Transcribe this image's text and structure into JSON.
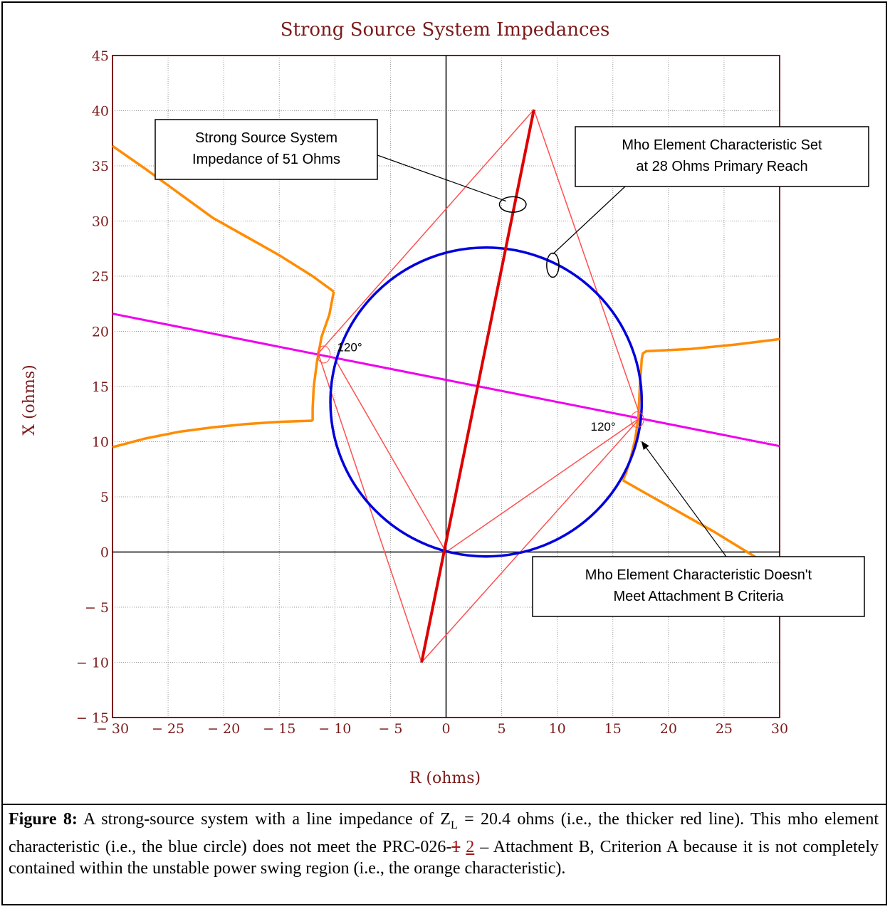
{
  "chart_data": {
    "type": "scatter",
    "title": "Strong Source System Impedances",
    "xlabel": "R (ohms)",
    "ylabel": "X (ohms)",
    "xlim": [
      -30,
      30
    ],
    "ylim": [
      -15,
      45
    ],
    "xticks": [
      -30,
      -25,
      -20,
      -15,
      -10,
      -5,
      0,
      5,
      10,
      15,
      20,
      25,
      30
    ],
    "yticks": [
      -15,
      -10,
      -5,
      0,
      5,
      10,
      15,
      20,
      25,
      30,
      35,
      40,
      45
    ],
    "xtick_labels": [
      "− 30",
      "− 25",
      "− 20",
      "− 15",
      "− 10",
      "− 5",
      "0",
      "5",
      "10",
      "15",
      "20",
      "25",
      "30"
    ],
    "ytick_labels": [
      "− 15",
      "− 10",
      "− 5",
      "0",
      "5",
      "10",
      "15",
      "20",
      "25",
      "30",
      "35",
      "40",
      "45"
    ],
    "grid": true,
    "colors": {
      "title": "#7b1a1a",
      "axis_box": "#7b1a1a",
      "grid": "#9a9a9a",
      "mho_circle": "#0000dd",
      "line_impedance": "#dd0000",
      "system_impedance": "#ff5050",
      "unstable_region": "#ff8c00",
      "magenta_line": "#ee00ee"
    },
    "series": [
      {
        "name": "mho circle",
        "kind": "circle",
        "center": [
          3.6,
          13.6
        ],
        "radius": 14.0
      },
      {
        "name": "line impedance",
        "kind": "line",
        "x": [
          -2.2,
          7.9
        ],
        "y": [
          -10.0,
          40.1
        ]
      },
      {
        "name": "system impedance",
        "kind": "polygon",
        "x": [
          7.9,
          17.5,
          -2.2,
          -11.5,
          7.9
        ],
        "y": [
          40.1,
          12.2,
          -10.0,
          18.0,
          40.1
        ]
      },
      {
        "name": "secondary segment",
        "kind": "line",
        "x": [
          -10.0,
          0.0,
          17.5
        ],
        "y": [
          17.5,
          0.0,
          12.2
        ]
      },
      {
        "name": "magenta line",
        "kind": "line",
        "x": [
          -30,
          30
        ],
        "y": [
          21.6,
          9.6
        ]
      },
      {
        "name": "unstable upper left",
        "kind": "line",
        "x": [
          -30,
          -27,
          -24,
          -21,
          -18,
          -15,
          -12,
          -10.1
        ],
        "y": [
          36.8,
          34.7,
          32.5,
          30.3,
          28.6,
          26.9,
          25.0,
          23.6
        ]
      },
      {
        "name": "unstable left arc",
        "kind": "line",
        "x": [
          -10.1,
          -10.5,
          -11.2,
          -11.6,
          -11.9,
          -12.0,
          -12.0
        ],
        "y": [
          23.6,
          21.5,
          19.5,
          17.3,
          15.0,
          13.0,
          11.9
        ]
      },
      {
        "name": "unstable lower left",
        "kind": "line",
        "x": [
          -12.0,
          -15,
          -18,
          -21,
          -24,
          -27,
          -30
        ],
        "y": [
          11.9,
          11.8,
          11.6,
          11.3,
          10.9,
          10.3,
          9.5
        ]
      },
      {
        "name": "unstable upper right",
        "kind": "line",
        "x": [
          17.4,
          17.6,
          17.7,
          18.0,
          22,
          26,
          30
        ],
        "y": [
          14.5,
          17.5,
          18.0,
          18.2,
          18.4,
          18.8,
          19.3
        ]
      },
      {
        "name": "unstable right arc",
        "kind": "line",
        "x": [
          17.4,
          17.3,
          17.0,
          16.6,
          16.2,
          15.9
        ],
        "y": [
          14.5,
          12.2,
          10.2,
          8.5,
          7.2,
          6.5
        ]
      },
      {
        "name": "unstable lower right",
        "kind": "line",
        "x": [
          15.9,
          18,
          21,
          24,
          27.9
        ],
        "y": [
          6.5,
          5.3,
          3.6,
          1.9,
          -0.5
        ]
      },
      {
        "name": "callout ellipse system",
        "kind": "ellipse",
        "center": [
          6.0,
          31.5
        ],
        "rx": 1.2,
        "ry": 0.7
      },
      {
        "name": "callout ellipse mho",
        "kind": "ellipse",
        "center": [
          9.6,
          26.0
        ],
        "rx": 0.55,
        "ry": 1.1
      }
    ],
    "annotations": [
      {
        "lines": [
          "Strong Source System",
          "Impedance of 51 Ohms"
        ],
        "target": [
          5.4,
          31.8
        ]
      },
      {
        "lines": [
          "Mho Element Characteristic Set",
          "at 28 Ohms Primary Reach"
        ],
        "target": [
          9.6,
          27.0
        ]
      },
      {
        "lines": [
          "Mho Element Characteristic Doesn't",
          "Meet Attachment B Criteria"
        ],
        "target": [
          17.6,
          10.0
        ]
      }
    ],
    "angle_labels": [
      {
        "text": "120°",
        "at": [
          -9.8,
          18.2
        ]
      },
      {
        "text": "120°",
        "at": [
          13.0,
          11.0
        ]
      }
    ]
  },
  "caption": {
    "label": "Figure 8:",
    "text1": " A strong-source system with a line impedance of Z",
    "subscript": "L",
    "text2": " = 20.4 ohms (i.e., the thicker red line). This mho element characteristic (i.e., the blue circle) does not meet the PRC-026-",
    "deleted": "1",
    "inserted": "2",
    "text3": " – Attachment B, Criterion A because it is not completely contained within the unstable power swing region (i.e., the orange characteristic)."
  }
}
